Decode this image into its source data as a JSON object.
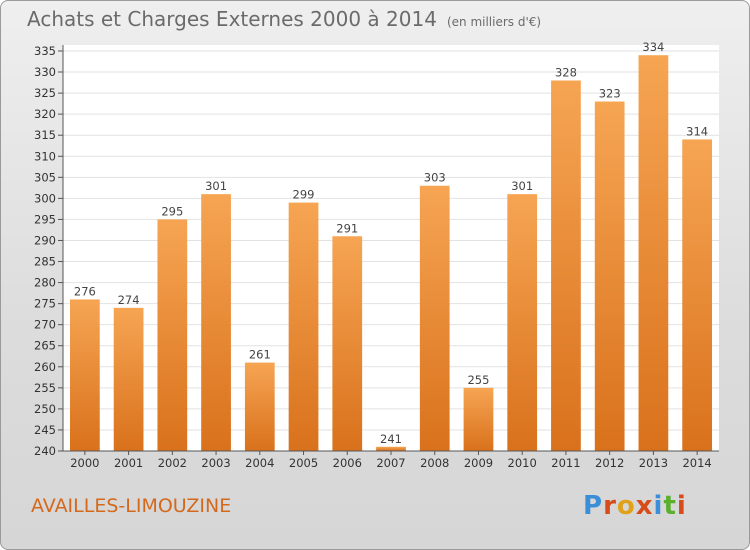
{
  "title": "Achats et Charges Externes 2000 à 2014",
  "unit_note": "(en milliers d'€)",
  "location": "AVAILLES-LIMOUZINE",
  "brand": {
    "text": "Proxiti",
    "letter_colors": [
      "#3a8fd8",
      "#d64c1a",
      "#e0a21a",
      "#d64c1a",
      "#3a8fd8",
      "#58b02c",
      "#d64c1a"
    ]
  },
  "colors": {
    "bar_light": "#f6a553",
    "bar_dark": "#d9711c",
    "grid": "#e2e2e2",
    "plot_bg": "#ffffff"
  },
  "chart_data": {
    "type": "bar",
    "title": "Achats et Charges Externes 2000 à 2014",
    "subtitle": "(en milliers d'€)",
    "categories": [
      "2000",
      "2001",
      "2002",
      "2003",
      "2004",
      "2005",
      "2006",
      "2007",
      "2008",
      "2009",
      "2010",
      "2011",
      "2012",
      "2013",
      "2014"
    ],
    "values": [
      276,
      274,
      295,
      301,
      261,
      299,
      291,
      241,
      303,
      255,
      301,
      328,
      323,
      334,
      314
    ],
    "ylim": [
      240,
      335
    ],
    "yticks": [
      240,
      245,
      250,
      255,
      260,
      265,
      270,
      275,
      280,
      285,
      290,
      295,
      300,
      305,
      310,
      315,
      320,
      325,
      330,
      335
    ],
    "xlabel": "",
    "ylabel": "",
    "grid": true
  }
}
